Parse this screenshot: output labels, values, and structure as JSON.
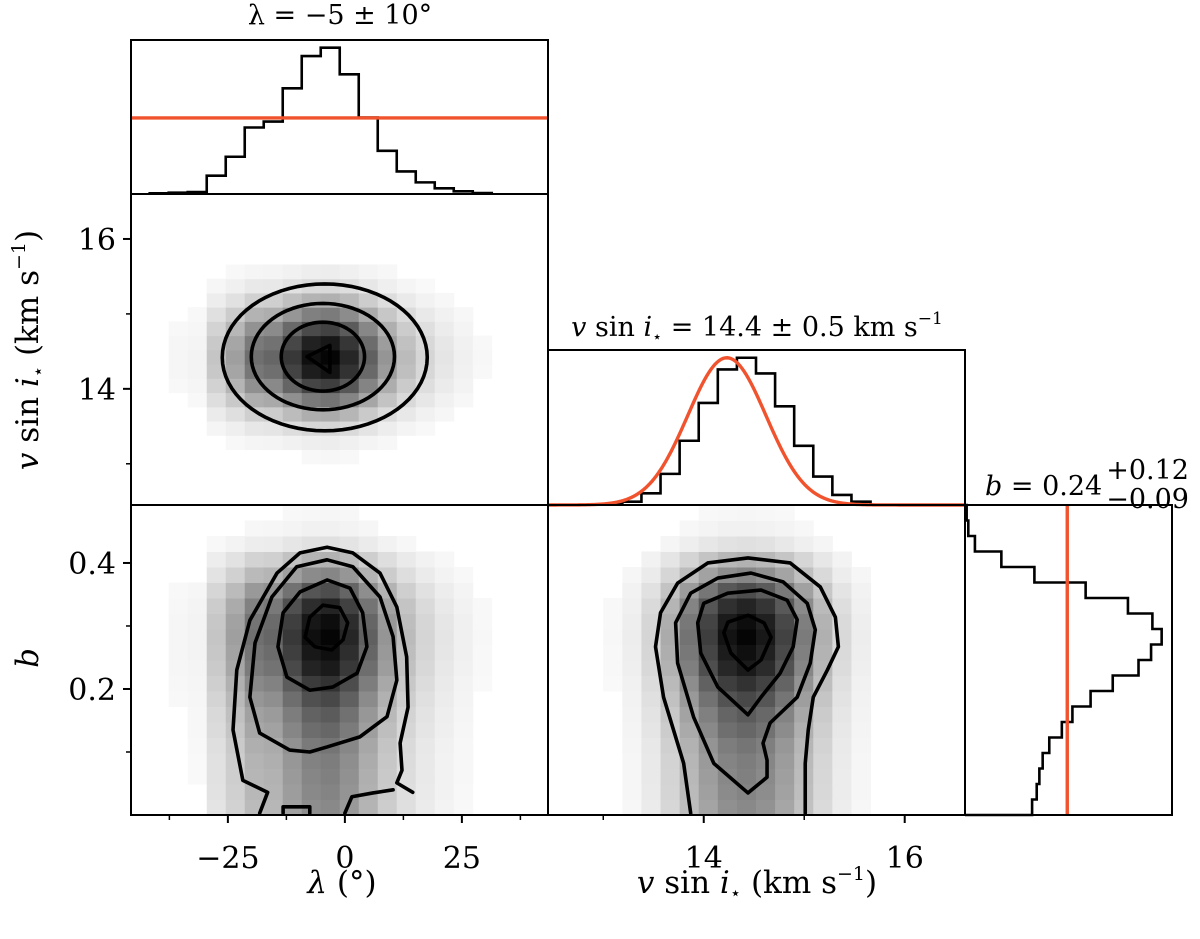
{
  "chart_data": {
    "type": "corner",
    "colors": {
      "prior": "#f0532d",
      "line": "#000000"
    },
    "parameters": {
      "lambda": {
        "title": "λ = −5 ± 10°",
        "axis_label": {
          "symbol": "λ",
          "unit": " (°)"
        },
        "range": [
          -45.7,
          43.4
        ],
        "ticks": [
          -25,
          0,
          25
        ],
        "tick_labels": [
          "−25",
          "0",
          "25"
        ],
        "minor_ticks": [
          -37.5,
          -12.5,
          12.5,
          37.5
        ]
      },
      "vsini": {
        "title": {
          "v": "v",
          "sin": " sin ",
          "i": "i",
          "star": "⋆",
          "rest": " = 14.4 ± 0.5 km s",
          "sup": "−1"
        },
        "axis_label": {
          "v": "v",
          "sin": " sin ",
          "i": "i",
          "star": "⋆",
          "unit": " (km s",
          "sup": "−1",
          "close": ")"
        },
        "range": [
          12.45,
          16.6
        ],
        "ticks": [
          14,
          16
        ],
        "tick_labels": [
          "14",
          "16"
        ],
        "minor_ticks": [
          13,
          15
        ]
      },
      "b": {
        "title": {
          "symbol": "b",
          "main": " = 0.24",
          "sup": "+0.12",
          "sub": "−0.09"
        },
        "axis_label": {
          "symbol": "b"
        },
        "range": [
          0,
          0.492
        ],
        "ticks": [
          0.2,
          0.4
        ],
        "tick_labels": [
          "0.2",
          "0.4"
        ],
        "minor_ticks": [
          0.1,
          0.3
        ]
      }
    },
    "histograms": {
      "lambda": {
        "bin_start": -41.7,
        "bin_width": 4.06,
        "counts": [
          2,
          4,
          6,
          55,
          112,
          200,
          218,
          318,
          415,
          440,
          360,
          230,
          130,
          68,
          35,
          17,
          8,
          3
        ]
      },
      "vsini": {
        "bin_start": 13.0,
        "bin_width": 0.19,
        "counts": [
          3,
          10,
          35,
          93,
          192,
          305,
          405,
          440,
          393,
          295,
          177,
          85,
          30,
          10
        ]
      },
      "b": {
        "bin_start": 0.0,
        "bin_width": 0.0246,
        "counts": [
          203,
          217,
          225,
          235,
          255,
          293,
          325,
          380,
          447,
          525,
          563,
          595,
          567,
          493,
          365,
          210,
          110,
          30,
          10,
          5
        ]
      }
    },
    "priors": {
      "lambda": {
        "type": "uniform",
        "level_fraction_of_peak": 0.52
      },
      "vsini": {
        "type": "gaussian",
        "mean": 14.23,
        "sigma": 0.39
      },
      "b": {
        "type": "uniform",
        "level_fraction_of_peak": 0.52
      }
    },
    "contours_2d": {
      "lambda_vsini": {
        "ellipses": [
          {
            "cx": -4.3,
            "cy": 14.42,
            "rx": 21.9,
            "ry": 0.98
          },
          {
            "cx": -4.7,
            "cy": 14.43,
            "rx": 15.3,
            "ry": 0.71
          },
          {
            "cx": -4.7,
            "cy": 14.43,
            "rx": 8.9,
            "ry": 0.46
          }
        ],
        "polylines": [
          {
            "closed": true,
            "points": [
              [
                -8.1,
                14.43
              ],
              [
                -3.2,
                14.58
              ],
              [
                -3.2,
                14.22
              ]
            ]
          }
        ]
      },
      "lambda_b": {
        "polylines": [
          {
            "closed": false,
            "points": [
              [
                -18.2,
                0.003
              ],
              [
                -16.5,
                0.036
              ],
              [
                -21.8,
                0.055
              ],
              [
                -23.9,
                0.135
              ],
              [
                -23.1,
                0.23
              ],
              [
                -20.3,
                0.309
              ],
              [
                -14.5,
                0.384
              ],
              [
                -9.6,
                0.416
              ],
              [
                -3.8,
                0.425
              ],
              [
                1.7,
                0.416
              ],
              [
                7.5,
                0.384
              ],
              [
                11.1,
                0.33
              ],
              [
                13.2,
                0.251
              ],
              [
                13.5,
                0.171
              ],
              [
                11.8,
                0.114
              ],
              [
                12.2,
                0.071
              ],
              [
                11.1,
                0.051
              ],
              [
                14.5,
                0.036
              ]
            ]
          },
          {
            "closed": false,
            "points": [
              [
                0,
                0.003
              ],
              [
                1.5,
                0.029
              ],
              [
                6.0,
                0.035
              ],
              [
                10.3,
                0.04
              ]
            ]
          },
          {
            "closed": false,
            "points": [
              [
                -13.2,
                0.003
              ],
              [
                -13.2,
                0.013
              ],
              [
                -7.5,
                0.013
              ],
              [
                -7.5,
                0.003
              ]
            ]
          },
          {
            "closed": true,
            "points": [
              [
                -11.8,
                0.103
              ],
              [
                -18.2,
                0.13
              ],
              [
                -20.3,
                0.187
              ],
              [
                -19.2,
                0.273
              ],
              [
                -15.6,
                0.346
              ],
              [
                -10.3,
                0.394
              ],
              [
                -3.8,
                0.405
              ],
              [
                1.7,
                0.394
              ],
              [
                7.5,
                0.346
              ],
              [
                10.3,
                0.283
              ],
              [
                11.1,
                0.214
              ],
              [
                9.0,
                0.156
              ],
              [
                3.2,
                0.124
              ],
              [
                -3.8,
                0.108
              ],
              [
                -7.5,
                0.1
              ]
            ]
          },
          {
            "closed": true,
            "points": [
              [
                -7.5,
                0.198
              ],
              [
                -12.4,
                0.219
              ],
              [
                -14.3,
                0.267
              ],
              [
                -13.2,
                0.321
              ],
              [
                -9.6,
                0.354
              ],
              [
                -3.8,
                0.373
              ],
              [
                1.1,
                0.36
              ],
              [
                3.8,
                0.321
              ],
              [
                4.7,
                0.267
              ],
              [
                2.6,
                0.225
              ],
              [
                -2.6,
                0.203
              ]
            ]
          },
          {
            "closed": true,
            "points": [
              [
                -8.5,
                0.282
              ],
              [
                -7.5,
                0.314
              ],
              [
                -4.7,
                0.333
              ],
              [
                -1.1,
                0.329
              ],
              [
                0.6,
                0.305
              ],
              [
                -0.4,
                0.278
              ],
              [
                -2.8,
                0.262
              ],
              [
                -6.4,
                0.267
              ]
            ]
          }
        ]
      },
      "vsini_b": {
        "polylines": [
          {
            "closed": false,
            "points": [
              [
                13.87,
                0.003
              ],
              [
                13.8,
                0.082
              ],
              [
                13.6,
                0.187
              ],
              [
                13.52,
                0.267
              ],
              [
                13.57,
                0.321
              ],
              [
                13.74,
                0.368
              ],
              [
                14.04,
                0.4
              ],
              [
                14.44,
                0.408
              ],
              [
                14.86,
                0.4
              ],
              [
                15.16,
                0.362
              ],
              [
                15.31,
                0.314
              ],
              [
                15.34,
                0.267
              ],
              [
                15.23,
                0.23
              ],
              [
                15.09,
                0.187
              ],
              [
                15.04,
                0.135
              ],
              [
                15.01,
                0.082
              ],
              [
                15.01,
                0.003
              ]
            ]
          },
          {
            "closed": true,
            "points": [
              [
                14.44,
                0.035
              ],
              [
                14.1,
                0.082
              ],
              [
                13.9,
                0.155
              ],
              [
                13.74,
                0.241
              ],
              [
                13.72,
                0.305
              ],
              [
                13.87,
                0.352
              ],
              [
                14.14,
                0.376
              ],
              [
                14.47,
                0.384
              ],
              [
                14.79,
                0.37
              ],
              [
                15.03,
                0.336
              ],
              [
                15.11,
                0.294
              ],
              [
                15.06,
                0.241
              ],
              [
                14.93,
                0.187
              ],
              [
                14.66,
                0.146
              ],
              [
                14.59,
                0.114
              ],
              [
                14.63,
                0.087
              ],
              [
                14.63,
                0.06
              ]
            ]
          },
          {
            "closed": true,
            "points": [
              [
                14.44,
                0.159
              ],
              [
                14.14,
                0.203
              ],
              [
                13.97,
                0.257
              ],
              [
                13.94,
                0.305
              ],
              [
                14.0,
                0.336
              ],
              [
                14.24,
                0.352
              ],
              [
                14.57,
                0.357
              ],
              [
                14.83,
                0.341
              ],
              [
                14.93,
                0.31
              ],
              [
                14.89,
                0.267
              ],
              [
                14.76,
                0.225
              ],
              [
                14.57,
                0.187
              ]
            ]
          },
          {
            "closed": true,
            "points": [
              [
                14.44,
                0.23
              ],
              [
                14.27,
                0.257
              ],
              [
                14.2,
                0.289
              ],
              [
                14.24,
                0.306
              ],
              [
                14.44,
                0.317
              ],
              [
                14.6,
                0.305
              ],
              [
                14.67,
                0.282
              ],
              [
                14.57,
                0.246
              ]
            ]
          }
        ]
      }
    }
  }
}
